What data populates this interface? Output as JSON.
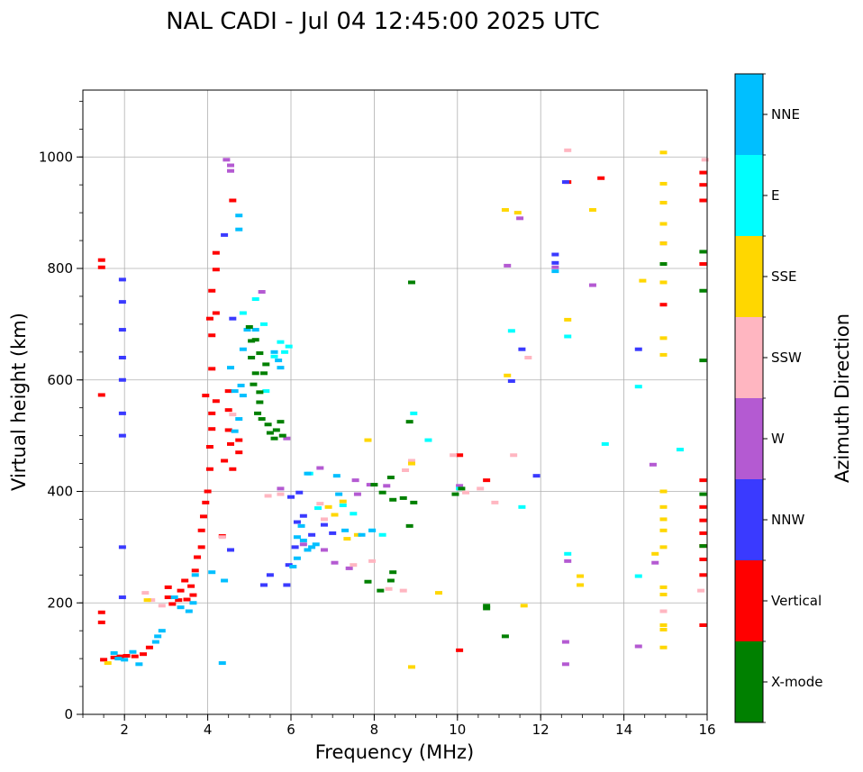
{
  "chart_data": {
    "type": "scatter",
    "title": "NAL CADI - Jul 04 12:45:00 2025 UTC",
    "xlabel": "Frequency (MHz)",
    "ylabel": "Virtual height (km)",
    "xlim": [
      1,
      16
    ],
    "ylim": [
      0,
      1120
    ],
    "xticks": [
      "2",
      "4",
      "6",
      "8",
      "10",
      "12",
      "14",
      "16"
    ],
    "yticks": [
      "0",
      "200",
      "400",
      "600",
      "800",
      "1000"
    ],
    "grid": true,
    "colorbar": {
      "label": "Azimuth Direction",
      "categories": [
        {
          "name": "X-mode",
          "color": "#008000"
        },
        {
          "name": "Vertical",
          "color": "#ff0000"
        },
        {
          "name": "NNW",
          "color": "#3a3aff"
        },
        {
          "name": "W",
          "color": "#b45ad2"
        },
        {
          "name": "SSW",
          "color": "#ffb6c1"
        },
        {
          "name": "SSE",
          "color": "#ffd700"
        },
        {
          "name": "E",
          "color": "#00ffff"
        },
        {
          "name": "NNE",
          "color": "#00bfff"
        }
      ]
    },
    "series": [
      {
        "name": "Vertical",
        "points": [
          [
            1.45,
            815
          ],
          [
            1.45,
            802
          ],
          [
            1.45,
            573
          ],
          [
            1.45,
            183
          ],
          [
            1.45,
            165
          ],
          [
            1.5,
            98
          ],
          [
            1.75,
            102
          ],
          [
            1.9,
            104
          ],
          [
            2.05,
            105
          ],
          [
            2.25,
            104
          ],
          [
            2.45,
            108
          ],
          [
            2.6,
            120
          ],
          [
            3.05,
            228
          ],
          [
            3.05,
            210
          ],
          [
            3.15,
            198
          ],
          [
            3.3,
            205
          ],
          [
            3.35,
            222
          ],
          [
            3.45,
            240
          ],
          [
            3.5,
            206
          ],
          [
            3.6,
            230
          ],
          [
            3.65,
            214
          ],
          [
            3.7,
            258
          ],
          [
            3.75,
            282
          ],
          [
            3.85,
            300
          ],
          [
            3.85,
            330
          ],
          [
            3.9,
            355
          ],
          [
            3.95,
            380
          ],
          [
            4.0,
            400
          ],
          [
            4.05,
            440
          ],
          [
            4.05,
            480
          ],
          [
            4.1,
            512
          ],
          [
            4.1,
            540
          ],
          [
            3.95,
            572
          ],
          [
            4.2,
            562
          ],
          [
            4.1,
            620
          ],
          [
            4.1,
            680
          ],
          [
            4.05,
            710
          ],
          [
            4.2,
            720
          ],
          [
            4.1,
            760
          ],
          [
            4.2,
            798
          ],
          [
            4.2,
            828
          ],
          [
            4.6,
            922
          ],
          [
            4.5,
            546
          ],
          [
            4.5,
            510
          ],
          [
            4.55,
            485
          ],
          [
            4.4,
            455
          ],
          [
            4.75,
            470
          ],
          [
            4.6,
            440
          ],
          [
            4.75,
            492
          ],
          [
            4.5,
            580
          ],
          [
            4.35,
            320
          ],
          [
            12.65,
            955
          ],
          [
            13.45,
            962
          ],
          [
            15.9,
            972
          ],
          [
            15.9,
            950
          ],
          [
            15.9,
            922
          ],
          [
            15.9,
            808
          ],
          [
            15.9,
            420
          ],
          [
            15.9,
            372
          ],
          [
            15.9,
            348
          ],
          [
            15.9,
            325
          ],
          [
            15.9,
            302
          ],
          [
            15.9,
            278
          ],
          [
            15.9,
            250
          ],
          [
            15.9,
            160
          ],
          [
            14.95,
            918
          ],
          [
            14.95,
            845
          ],
          [
            14.95,
            735
          ],
          [
            10.05,
            115
          ],
          [
            10.05,
            465
          ],
          [
            10.7,
            420
          ]
        ]
      },
      {
        "name": "NNW",
        "points": [
          [
            1.95,
            780
          ],
          [
            1.95,
            740
          ],
          [
            1.95,
            690
          ],
          [
            1.95,
            640
          ],
          [
            1.95,
            600
          ],
          [
            1.95,
            540
          ],
          [
            1.95,
            500
          ],
          [
            1.95,
            300
          ],
          [
            1.95,
            210
          ],
          [
            4.4,
            860
          ],
          [
            4.6,
            710
          ],
          [
            5.35,
            232
          ],
          [
            5.5,
            250
          ],
          [
            5.9,
            232
          ],
          [
            5.95,
            268
          ],
          [
            6.1,
            300
          ],
          [
            6.15,
            345
          ],
          [
            6.3,
            356
          ],
          [
            6.0,
            390
          ],
          [
            6.2,
            398
          ],
          [
            6.5,
            322
          ],
          [
            6.8,
            340
          ],
          [
            7.0,
            325
          ],
          [
            12.35,
            825
          ],
          [
            12.35,
            810
          ],
          [
            12.6,
            955
          ],
          [
            11.3,
            598
          ],
          [
            11.55,
            655
          ],
          [
            11.9,
            428
          ],
          [
            14.35,
            655
          ],
          [
            4.55,
            295
          ]
        ]
      },
      {
        "name": "W",
        "points": [
          [
            4.45,
            995
          ],
          [
            4.55,
            985
          ],
          [
            4.55,
            975
          ],
          [
            5.3,
            758
          ],
          [
            5.9,
            495
          ],
          [
            6.7,
            442
          ],
          [
            7.55,
            420
          ],
          [
            7.9,
            412
          ],
          [
            8.3,
            410
          ],
          [
            7.6,
            395
          ],
          [
            6.3,
            305
          ],
          [
            6.8,
            295
          ],
          [
            7.05,
            272
          ],
          [
            7.4,
            262
          ],
          [
            12.35,
            802
          ],
          [
            13.25,
            770
          ],
          [
            11.5,
            890
          ],
          [
            11.2,
            805
          ],
          [
            12.65,
            275
          ],
          [
            12.6,
            130
          ],
          [
            12.6,
            90
          ],
          [
            14.35,
            122
          ],
          [
            14.7,
            448
          ],
          [
            14.75,
            272
          ],
          [
            10.05,
            410
          ],
          [
            5.75,
            405
          ]
        ]
      },
      {
        "name": "SSW",
        "points": [
          [
            2.5,
            218
          ],
          [
            2.65,
            205
          ],
          [
            2.9,
            195
          ],
          [
            5.75,
            395
          ],
          [
            5.45,
            392
          ],
          [
            6.7,
            378
          ],
          [
            6.8,
            350
          ],
          [
            8.75,
            438
          ],
          [
            8.9,
            455
          ],
          [
            9.9,
            465
          ],
          [
            10.2,
            398
          ],
          [
            10.55,
            405
          ],
          [
            7.5,
            268
          ],
          [
            7.95,
            275
          ],
          [
            8.35,
            225
          ],
          [
            8.7,
            222
          ],
          [
            12.65,
            1012
          ],
          [
            15.95,
            995
          ],
          [
            15.85,
            222
          ],
          [
            14.95,
            185
          ],
          [
            10.9,
            380
          ],
          [
            11.35,
            465
          ],
          [
            11.7,
            640
          ],
          [
            4.6,
            538
          ],
          [
            4.35,
            318
          ]
        ]
      },
      {
        "name": "SSE",
        "points": [
          [
            1.6,
            92
          ],
          [
            2.55,
            205
          ],
          [
            6.9,
            372
          ],
          [
            7.05,
            358
          ],
          [
            7.25,
            382
          ],
          [
            7.35,
            315
          ],
          [
            7.6,
            322
          ],
          [
            7.85,
            492
          ],
          [
            8.9,
            450
          ],
          [
            8.9,
            85
          ],
          [
            9.55,
            218
          ],
          [
            11.15,
            905
          ],
          [
            11.45,
            900
          ],
          [
            11.2,
            608
          ],
          [
            12.65,
            708
          ],
          [
            13.25,
            905
          ],
          [
            12.95,
            248
          ],
          [
            12.95,
            232
          ],
          [
            14.45,
            778
          ],
          [
            14.95,
            1008
          ],
          [
            14.95,
            952
          ],
          [
            14.95,
            918
          ],
          [
            14.95,
            880
          ],
          [
            14.95,
            845
          ],
          [
            14.95,
            808
          ],
          [
            14.95,
            775
          ],
          [
            14.95,
            675
          ],
          [
            14.95,
            645
          ],
          [
            14.95,
            400
          ],
          [
            14.95,
            372
          ],
          [
            14.95,
            350
          ],
          [
            14.95,
            330
          ],
          [
            14.95,
            300
          ],
          [
            14.95,
            228
          ],
          [
            14.95,
            215
          ],
          [
            14.95,
            160
          ],
          [
            14.95,
            152
          ],
          [
            14.95,
            120
          ],
          [
            14.75,
            288
          ],
          [
            11.6,
            195
          ]
        ]
      },
      {
        "name": "E",
        "points": [
          [
            4.85,
            720
          ],
          [
            5.15,
            745
          ],
          [
            5.35,
            700
          ],
          [
            5.75,
            668
          ],
          [
            5.85,
            650
          ],
          [
            5.6,
            642
          ],
          [
            5.95,
            660
          ],
          [
            5.4,
            580
          ],
          [
            6.45,
            432
          ],
          [
            6.65,
            370
          ],
          [
            7.25,
            375
          ],
          [
            7.5,
            360
          ],
          [
            7.95,
            330
          ],
          [
            8.2,
            322
          ],
          [
            8.95,
            540
          ],
          [
            9.3,
            492
          ],
          [
            10.05,
            405
          ],
          [
            11.3,
            688
          ],
          [
            11.55,
            372
          ],
          [
            12.65,
            678
          ],
          [
            12.65,
            288
          ],
          [
            13.55,
            485
          ],
          [
            14.35,
            588
          ],
          [
            15.35,
            475
          ],
          [
            14.35,
            248
          ]
        ]
      },
      {
        "name": "NNE",
        "points": [
          [
            1.75,
            110
          ],
          [
            1.85,
            100
          ],
          [
            2.0,
            98
          ],
          [
            2.2,
            112
          ],
          [
            2.35,
            90
          ],
          [
            2.75,
            130
          ],
          [
            2.8,
            140
          ],
          [
            2.9,
            150
          ],
          [
            3.2,
            210
          ],
          [
            3.35,
            192
          ],
          [
            3.55,
            185
          ],
          [
            3.65,
            200
          ],
          [
            3.7,
            250
          ],
          [
            4.1,
            255
          ],
          [
            4.4,
            240
          ],
          [
            4.35,
            92
          ],
          [
            4.75,
            870
          ],
          [
            4.75,
            895
          ],
          [
            4.55,
            622
          ],
          [
            4.65,
            580
          ],
          [
            4.8,
            590
          ],
          [
            4.85,
            572
          ],
          [
            4.95,
            690
          ],
          [
            4.85,
            655
          ],
          [
            4.75,
            530
          ],
          [
            4.65,
            508
          ],
          [
            5.15,
            690
          ],
          [
            5.6,
            650
          ],
          [
            5.7,
            635
          ],
          [
            5.75,
            622
          ],
          [
            6.15,
            318
          ],
          [
            6.25,
            338
          ],
          [
            6.3,
            312
          ],
          [
            6.4,
            295
          ],
          [
            6.5,
            300
          ],
          [
            6.6,
            305
          ],
          [
            6.15,
            280
          ],
          [
            6.05,
            265
          ],
          [
            6.4,
            432
          ],
          [
            7.1,
            428
          ],
          [
            7.15,
            395
          ],
          [
            7.3,
            330
          ],
          [
            7.7,
            322
          ],
          [
            7.95,
            330
          ],
          [
            12.35,
            795
          ]
        ]
      },
      {
        "name": "X-mode",
        "points": [
          [
            5.0,
            695
          ],
          [
            5.05,
            670
          ],
          [
            5.05,
            640
          ],
          [
            5.15,
            612
          ],
          [
            5.1,
            592
          ],
          [
            5.25,
            578
          ],
          [
            5.25,
            560
          ],
          [
            5.2,
            540
          ],
          [
            5.3,
            530
          ],
          [
            5.45,
            520
          ],
          [
            5.5,
            505
          ],
          [
            5.65,
            510
          ],
          [
            5.6,
            495
          ],
          [
            5.75,
            525
          ],
          [
            5.8,
            500
          ],
          [
            5.35,
            612
          ],
          [
            5.4,
            628
          ],
          [
            5.25,
            648
          ],
          [
            5.15,
            672
          ],
          [
            8.0,
            412
          ],
          [
            8.4,
            425
          ],
          [
            8.2,
            398
          ],
          [
            8.7,
            388
          ],
          [
            8.95,
            380
          ],
          [
            8.45,
            385
          ],
          [
            8.85,
            525
          ],
          [
            8.9,
            775
          ],
          [
            8.85,
            338
          ],
          [
            8.45,
            255
          ],
          [
            8.4,
            240
          ],
          [
            8.15,
            222
          ],
          [
            7.85,
            238
          ],
          [
            9.95,
            395
          ],
          [
            10.1,
            405
          ],
          [
            10.7,
            195
          ],
          [
            10.7,
            190
          ],
          [
            11.15,
            140
          ],
          [
            15.9,
            830
          ],
          [
            15.9,
            760
          ],
          [
            15.9,
            635
          ],
          [
            15.9,
            395
          ],
          [
            15.9,
            302
          ],
          [
            14.95,
            808
          ]
        ]
      }
    ]
  }
}
